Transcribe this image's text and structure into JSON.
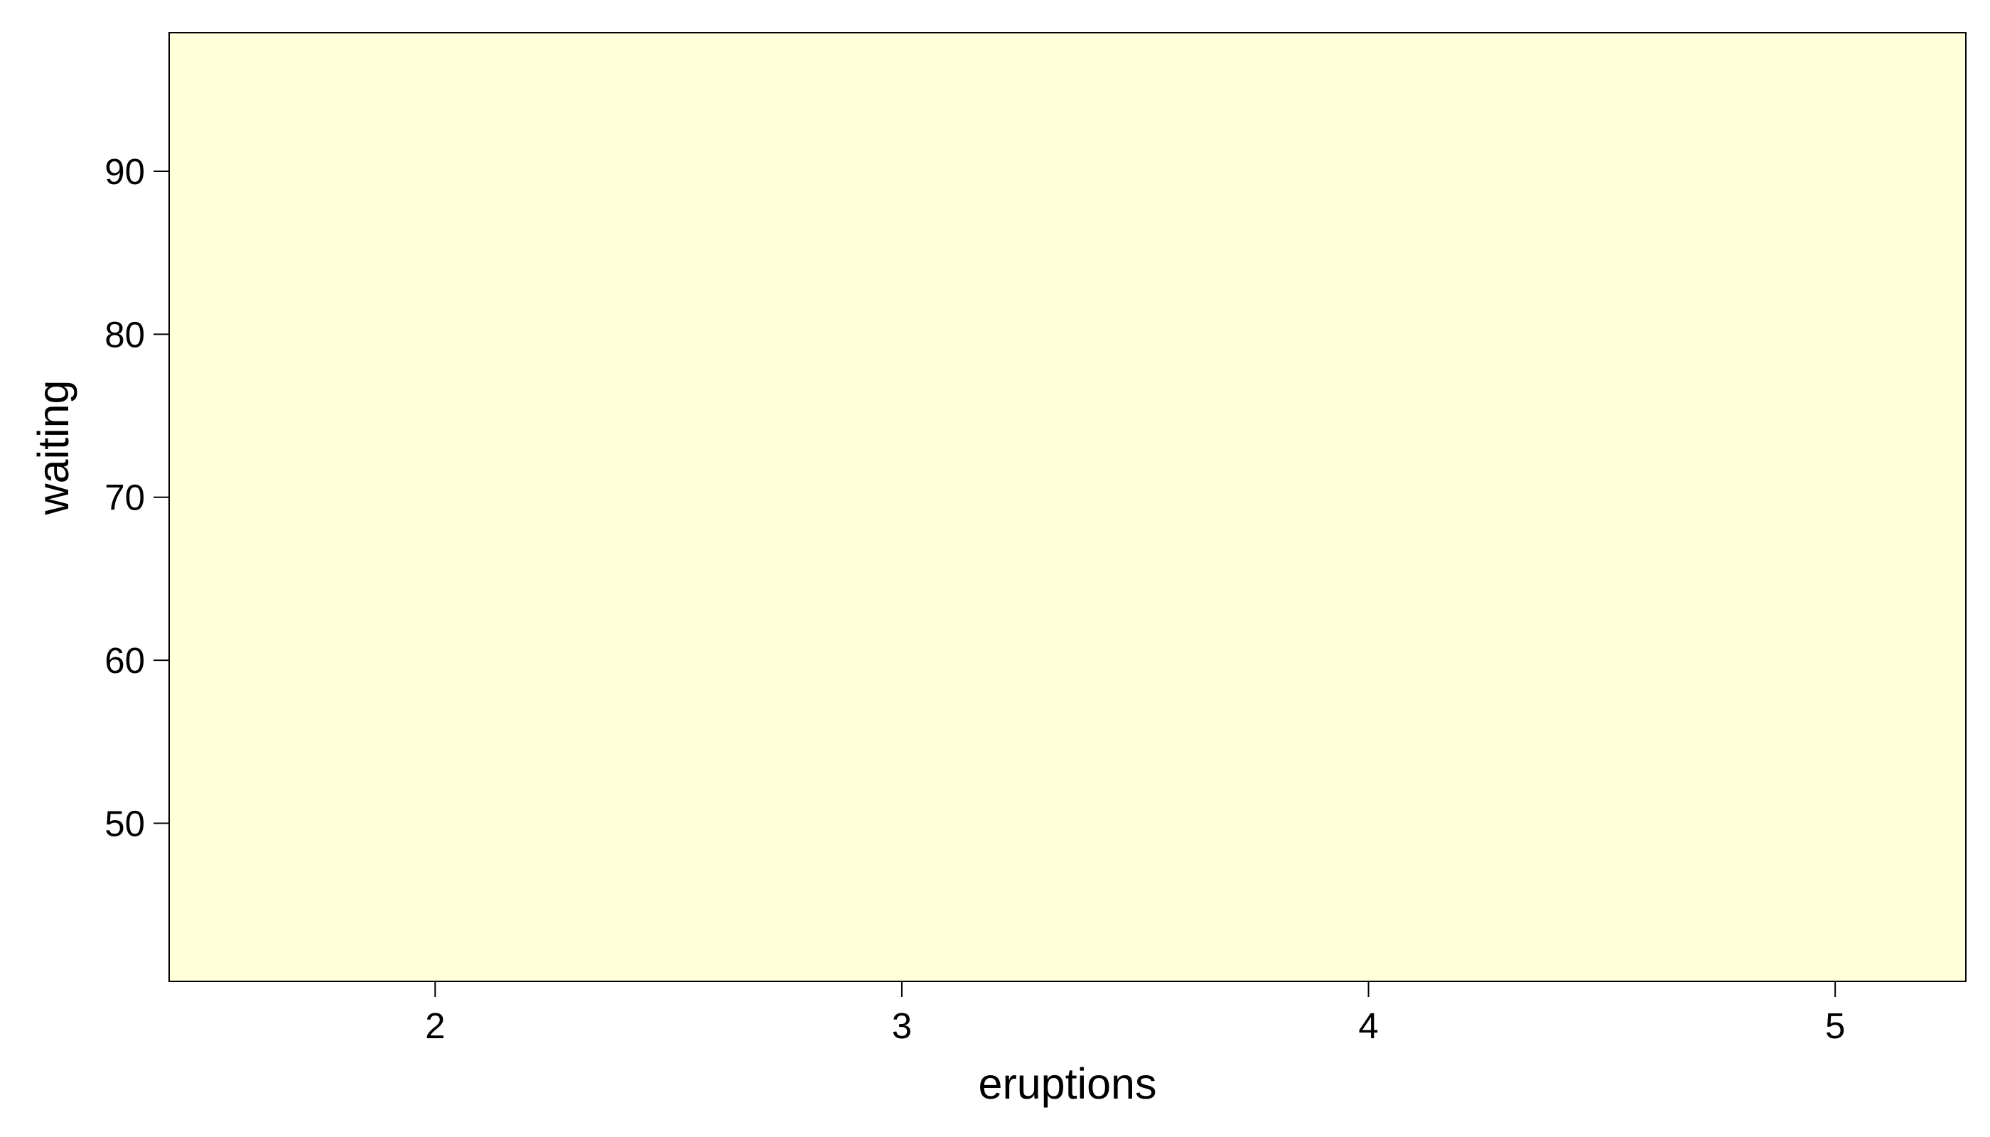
{
  "chart_data": {
    "type": "heatmap",
    "x_label": "eruptions",
    "y_label": "waiting",
    "x_range": [
      1.43,
      5.28
    ],
    "y_range": [
      40.3,
      98.5
    ],
    "x_ticks": [
      2,
      3,
      4,
      5
    ],
    "x_tick_labels": [
      "2",
      "3",
      "4",
      "5"
    ],
    "y_ticks": [
      50,
      60,
      70,
      80,
      90
    ],
    "y_tick_labels": [
      "50",
      "60",
      "70",
      "80",
      "90"
    ],
    "fill_color": "#FFFFD9",
    "grid": false,
    "legend": "none"
  }
}
